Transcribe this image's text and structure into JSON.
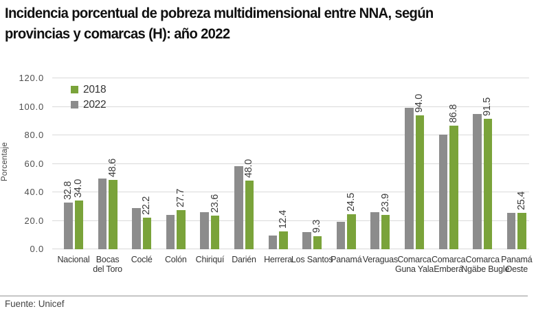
{
  "header": {
    "title_lines": [
      "Incidencia porcentual de pobreza multidimensional entre NNA, según",
      "provincias y comarcas (H): año 2022"
    ]
  },
  "chart_data": {
    "type": "bar",
    "title": "Incidencia porcentual de pobreza multidimensional entre NNA, según provincias y comarcas (H): año 2022",
    "xlabel": "",
    "ylabel": "Porcentaje",
    "ylim": [
      0,
      120
    ],
    "ytick_step": 20,
    "ytick_labels": [
      "0.0",
      "20.0",
      "40.0",
      "60.0",
      "80.0",
      "100.0",
      "120.0"
    ],
    "grid": true,
    "legend_position": "top-left-inside",
    "categories": [
      "Nacional",
      "Bocas del Toro",
      "Coclé",
      "Colón",
      "Chiriquí",
      "Darién",
      "Herrera",
      "Los Santos",
      "Panamá",
      "Veraguas",
      "Comarca Guna Yala",
      "Comarca Emberá",
      "Comarca Ngäbe Bugle",
      "Panamá Oeste"
    ],
    "category_label_lines": [
      [
        "Nacional"
      ],
      [
        "Bocas",
        "del Toro"
      ],
      [
        "Coclé"
      ],
      [
        "Colón"
      ],
      [
        "Chiriquí"
      ],
      [
        "Darién"
      ],
      [
        "Herrera"
      ],
      [
        "Los Santos"
      ],
      [
        "Panamá"
      ],
      [
        "Veraguas"
      ],
      [
        "Comarca",
        "Guna Yala"
      ],
      [
        "Comarca",
        "Emberá"
      ],
      [
        "Comarca",
        "Ngäbe Bugle"
      ],
      [
        "Panamá",
        "Oeste"
      ]
    ],
    "series": [
      {
        "name": "2022",
        "color": "#8C8C8C",
        "values": [
          32.8,
          49.8,
          29.1,
          24.0,
          25.9,
          58.5,
          9.5,
          12.0,
          19.5,
          26.2,
          99.3,
          80.5,
          95.0,
          25.5
        ]
      },
      {
        "name": "2018",
        "color": "#7AA33A",
        "values": [
          34.0,
          48.6,
          22.2,
          27.7,
          23.6,
          48.0,
          12.4,
          9.3,
          24.5,
          23.9,
          94.0,
          86.8,
          91.5,
          25.4
        ]
      }
    ],
    "legend": [
      {
        "label": "2018",
        "color": "#7AA33A"
      },
      {
        "label": "2022",
        "color": "#8C8C8C"
      }
    ],
    "data_labels": {
      "series_2018": [
        "34.0",
        "48.6",
        "22.2",
        "27.7",
        "23.6",
        "48.0",
        "12.4",
        "9.3",
        "24.5",
        "23.9",
        "94.0",
        "86.8",
        "91.5",
        "25.4"
      ],
      "series_2022": [
        "32.8",
        null,
        null,
        null,
        null,
        null,
        null,
        null,
        null,
        null,
        null,
        null,
        null,
        null
      ]
    }
  },
  "footer": {
    "source": "Fuente: Unicef"
  }
}
